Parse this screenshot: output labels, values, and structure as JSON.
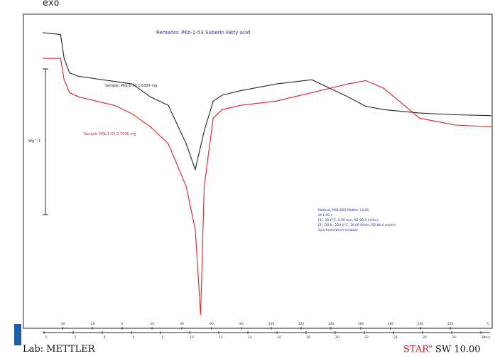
{
  "header": {
    "exo_label": "exo"
  },
  "chart_data": {
    "type": "line",
    "remarks": "Remarks: PKb-1-53 Suberin Fatty acid",
    "ylabel": "Wg^-1",
    "series": [
      {
        "name": "Sample: PKb-1-53 1.6300 mg",
        "color": "#222222",
        "x": [
          -30,
          -20,
          -18,
          -15,
          -10,
          0,
          10,
          20,
          30,
          40,
          50,
          55,
          60,
          65,
          70,
          80,
          100,
          120,
          140,
          150,
          160,
          180,
          200,
          220
        ],
        "y": [
          1.3,
          1.28,
          1.0,
          0.83,
          0.79,
          0.76,
          0.73,
          0.7,
          0.55,
          0.45,
          0.0,
          -0.3,
          0.15,
          0.5,
          0.57,
          0.62,
          0.7,
          0.75,
          0.55,
          0.44,
          0.4,
          0.36,
          0.34,
          0.33
        ]
      },
      {
        "name": "Sample: PKb-1-53 2.7000 mg",
        "color": "#e02020",
        "x": [
          -30,
          -20,
          -18,
          -15,
          -10,
          0,
          10,
          20,
          30,
          40,
          50,
          55,
          58,
          60,
          65,
          70,
          80,
          100,
          120,
          140,
          150,
          160,
          180,
          200,
          220
        ],
        "y": [
          1.0,
          1.0,
          0.75,
          0.6,
          0.55,
          0.5,
          0.45,
          0.35,
          0.2,
          0.0,
          -0.5,
          -1.0,
          -2.0,
          -0.5,
          0.3,
          0.4,
          0.45,
          0.5,
          0.6,
          0.7,
          0.74,
          0.65,
          0.3,
          0.22,
          0.2
        ]
      }
    ],
    "method_box": [
      "Method: PKB-SDS-Mettler 10.00",
      "dt 1.00 s",
      "[1] -30.0°C, 3.00 min, N2 80.0 ml/min",
      "[2] -30.0...220.0°C, 10.00 K/min, N2 80.0 ml/min",
      "Synchronization enabled"
    ],
    "top_axis_ticks": [
      "-30",
      "-20",
      "0",
      "20",
      "40",
      "60",
      "80",
      "100",
      "120",
      "140",
      "160",
      "180",
      "200",
      "220"
    ],
    "bottom_axis_ticks": [
      "0",
      "2",
      "4",
      "6",
      "8",
      "10",
      "12",
      "14",
      "16",
      "18",
      "20",
      "22",
      "24",
      "26",
      "28",
      "30"
    ],
    "top_axis_unit": "°C",
    "bottom_axis_unit": "min"
  },
  "footer": {
    "lab": "Lab: METTLER",
    "star": "STAR",
    "star_sup": "e",
    "sw": "SW 10.00"
  }
}
